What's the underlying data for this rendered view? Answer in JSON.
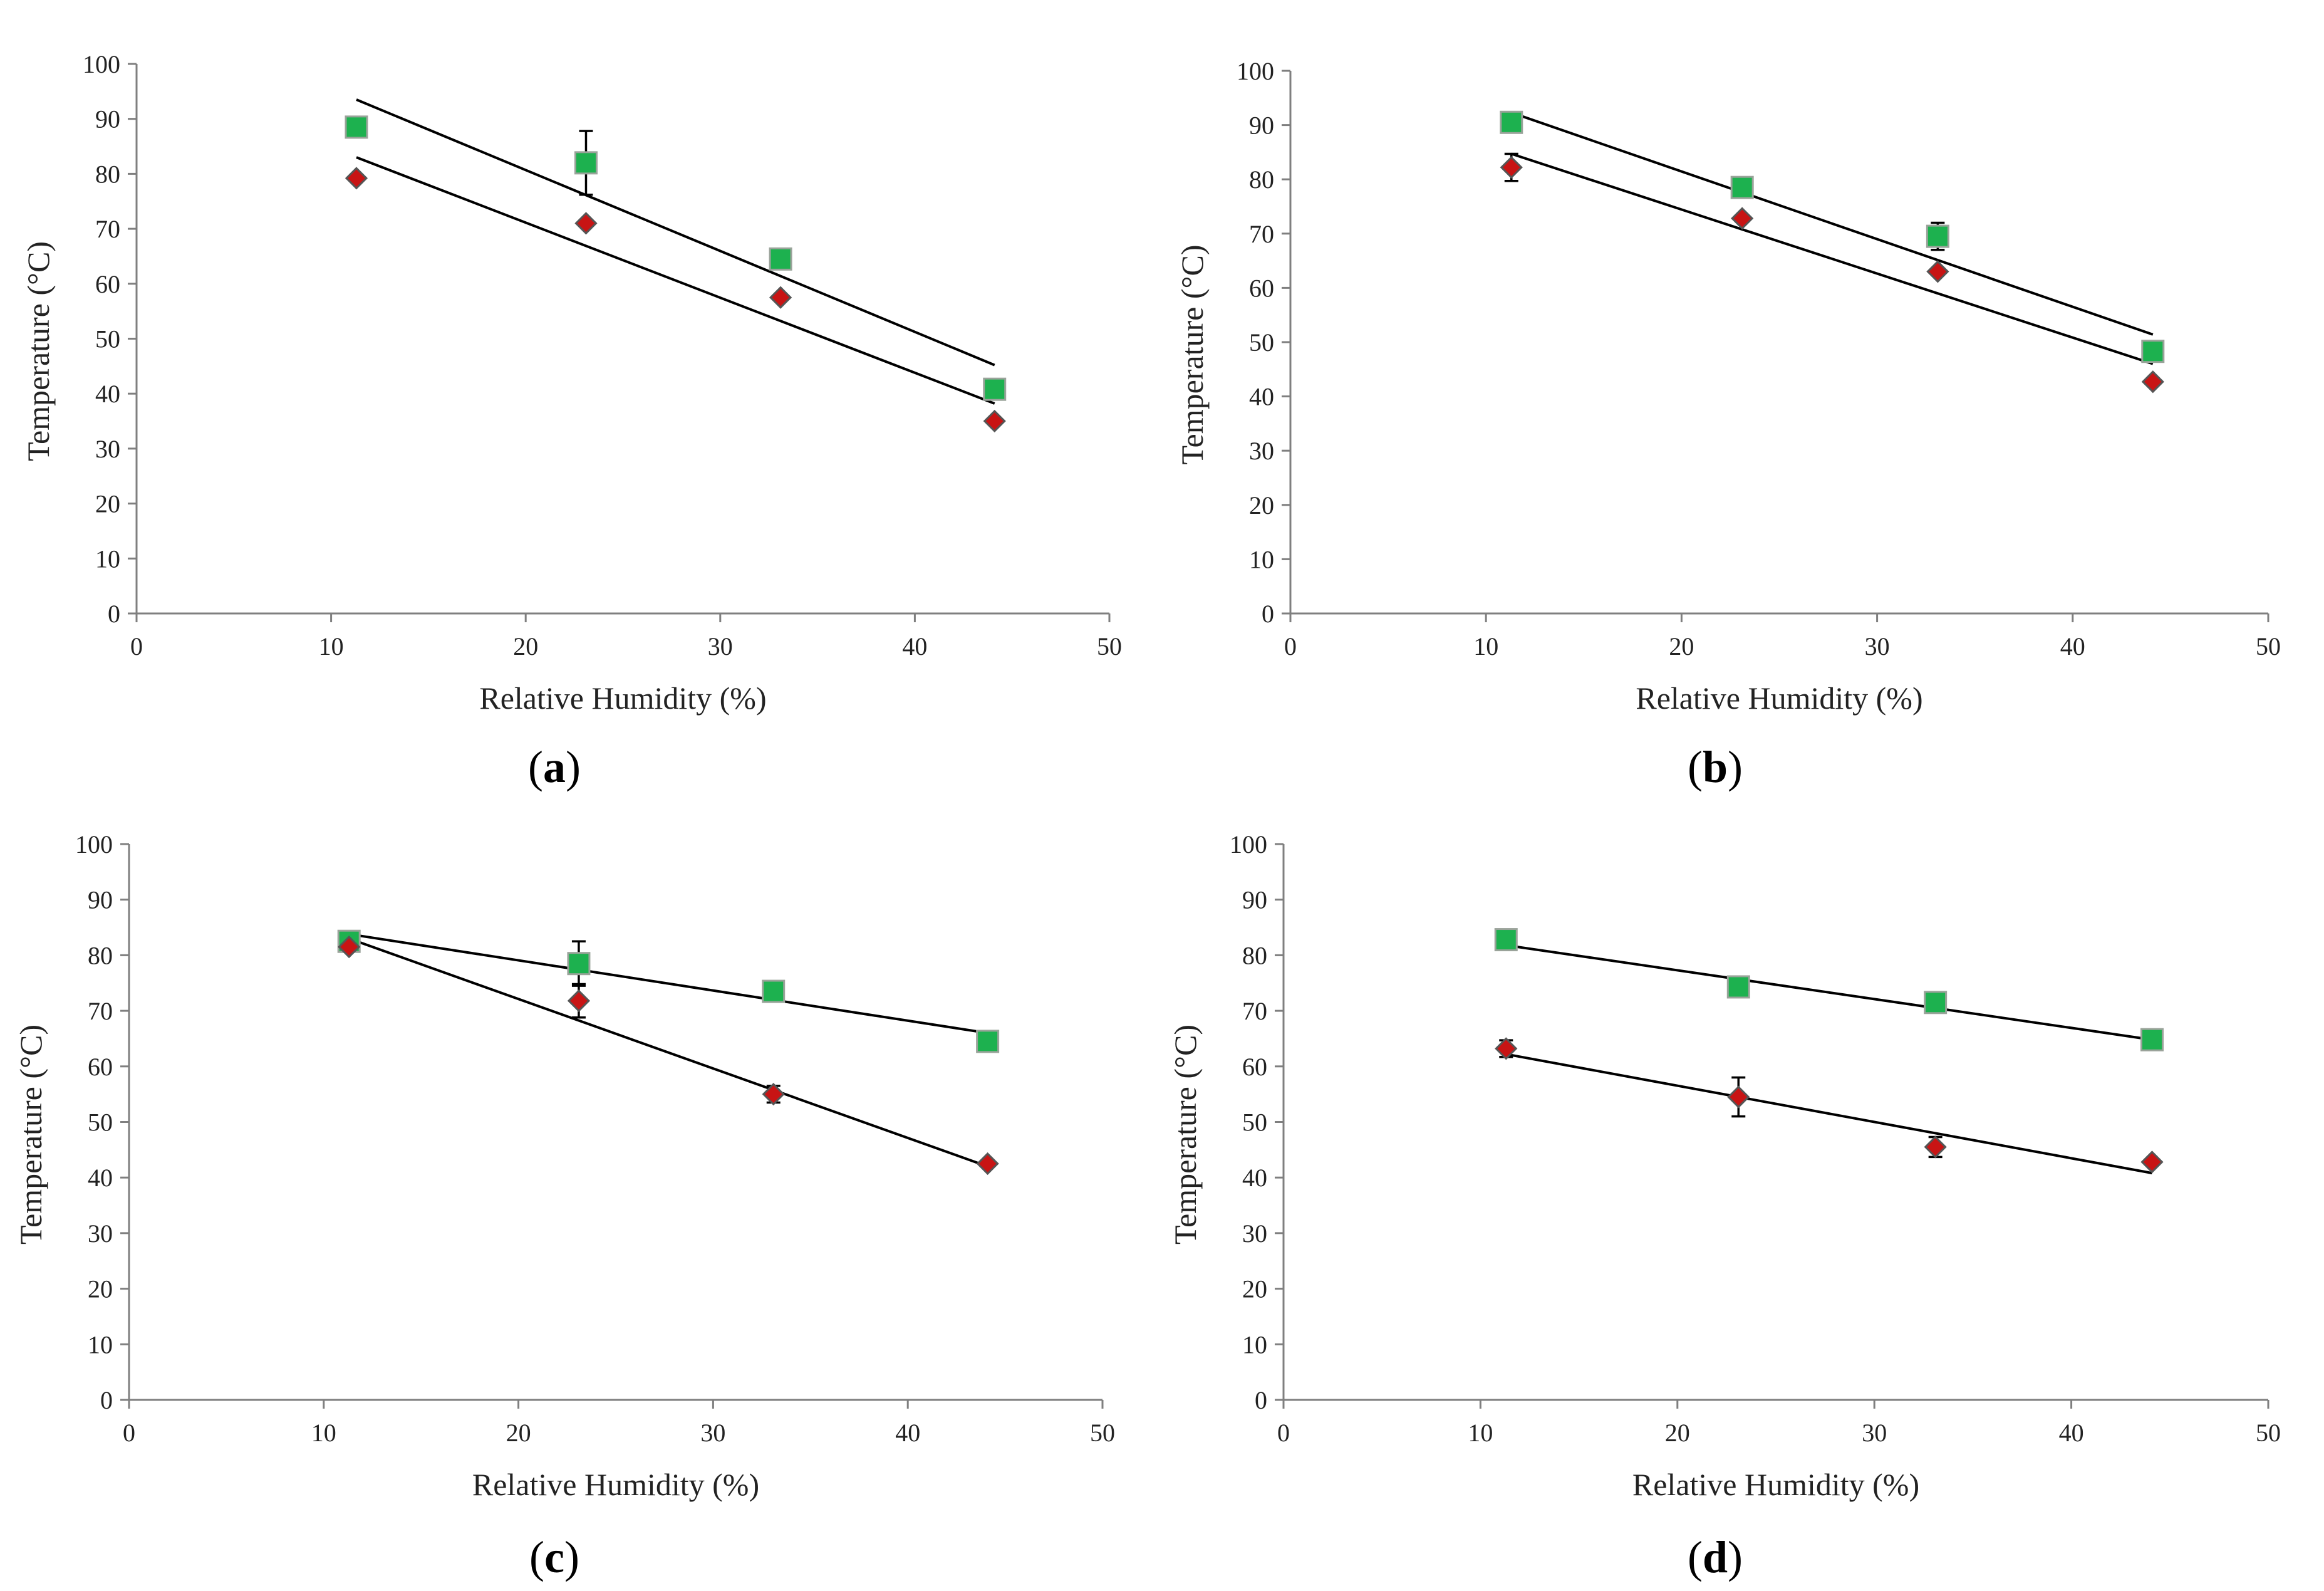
{
  "colors": {
    "square_marker": "#1db14f",
    "square_edge": "#9aa39a",
    "diamond_marker": "#c81414",
    "diamond_edge": "#555555",
    "axis": "#7f7f7f",
    "fit_line": "#000000"
  },
  "chart_data": [
    {
      "type": "scatter",
      "panel_label": "a",
      "xlabel": "Relative Humidity (%)",
      "ylabel": "Temperature (°C)",
      "xlim": [
        0,
        50
      ],
      "ylim": [
        0,
        100
      ],
      "xticks": [
        0,
        10,
        20,
        30,
        40,
        50
      ],
      "yticks": [
        0,
        10,
        20,
        30,
        40,
        50,
        60,
        70,
        80,
        90,
        100
      ],
      "grid": false,
      "series": [
        {
          "name": "square",
          "marker": "square",
          "x": [
            11.3,
            23.1,
            33.1,
            44.1
          ],
          "y": [
            88.5,
            82,
            64.5,
            40.8
          ],
          "err": [
            0,
            5.8,
            0,
            0
          ],
          "fit": [
            [
              11.3,
              93.5
            ],
            [
              44.1,
              45.2
            ]
          ]
        },
        {
          "name": "diamond",
          "marker": "diamond",
          "x": [
            11.3,
            23.1,
            33.1,
            44.1
          ],
          "y": [
            79.2,
            71,
            57.5,
            35
          ],
          "err": [
            0,
            0,
            0,
            0
          ],
          "fit": [
            [
              11.3,
              83
            ],
            [
              44.1,
              38.2
            ]
          ]
        }
      ]
    },
    {
      "type": "scatter",
      "panel_label": "b",
      "xlabel": "Relative Humidity (%)",
      "ylabel": "Temperature (°C)",
      "xlim": [
        0,
        50
      ],
      "ylim": [
        0,
        100
      ],
      "xticks": [
        0,
        10,
        20,
        30,
        40,
        50
      ],
      "yticks": [
        0,
        10,
        20,
        30,
        40,
        50,
        60,
        70,
        80,
        90,
        100
      ],
      "grid": false,
      "series": [
        {
          "name": "square",
          "marker": "square",
          "x": [
            11.3,
            23.1,
            33.1,
            44.1
          ],
          "y": [
            90.5,
            78.5,
            69.5,
            48.3
          ],
          "err": [
            0,
            0,
            2.5,
            0
          ],
          "fit": [
            [
              11.3,
              92.3
            ],
            [
              44.1,
              51.4
            ]
          ]
        },
        {
          "name": "diamond",
          "marker": "diamond",
          "x": [
            11.3,
            23.1,
            33.1,
            44.1
          ],
          "y": [
            82.2,
            72.8,
            63,
            42.7
          ],
          "err": [
            2.5,
            0,
            0,
            0
          ],
          "fit": [
            [
              11.3,
              84.7
            ],
            [
              44.1,
              46
            ]
          ]
        }
      ]
    },
    {
      "type": "scatter",
      "panel_label": "c",
      "xlabel": "Relative Humidity (%)",
      "ylabel": "Temperature (°C)",
      "xlim": [
        0,
        50
      ],
      "ylim": [
        0,
        100
      ],
      "xticks": [
        0,
        10,
        20,
        30,
        40,
        50
      ],
      "yticks": [
        0,
        10,
        20,
        30,
        40,
        50,
        60,
        70,
        80,
        90,
        100
      ],
      "grid": false,
      "series": [
        {
          "name": "square",
          "marker": "square",
          "x": [
            11.3,
            23.1,
            33.1,
            44.1
          ],
          "y": [
            82.5,
            78.5,
            73.5,
            64.5
          ],
          "err": [
            0,
            4,
            0,
            0
          ],
          "fit": [
            [
              11.3,
              83.8
            ],
            [
              44.1,
              66
            ]
          ]
        },
        {
          "name": "diamond",
          "marker": "diamond",
          "x": [
            11.3,
            23.1,
            33.1,
            44.1
          ],
          "y": [
            81.5,
            71.8,
            55,
            42.5
          ],
          "err": [
            0,
            3,
            1.5,
            0
          ],
          "fit": [
            [
              11.3,
              83
            ],
            [
              44.1,
              42
            ]
          ]
        }
      ]
    },
    {
      "type": "scatter",
      "panel_label": "d",
      "xlabel": "Relative Humidity (%)",
      "ylabel": "Temperature (°C)",
      "xlim": [
        0,
        50
      ],
      "ylim": [
        0,
        100
      ],
      "xticks": [
        0,
        10,
        20,
        30,
        40,
        50
      ],
      "yticks": [
        0,
        10,
        20,
        30,
        40,
        50,
        60,
        70,
        80,
        90,
        100
      ],
      "grid": false,
      "series": [
        {
          "name": "square",
          "marker": "square",
          "x": [
            11.3,
            23.1,
            33.1,
            44.1
          ],
          "y": [
            82.8,
            74.3,
            71.5,
            64.8
          ],
          "err": [
            0,
            0,
            0,
            0
          ],
          "fit": [
            [
              11.3,
              81.8
            ],
            [
              44.1,
              64.8
            ]
          ]
        },
        {
          "name": "diamond",
          "marker": "diamond",
          "x": [
            11.3,
            23.1,
            33.1,
            44.1
          ],
          "y": [
            63.2,
            54.5,
            45.5,
            42.8
          ],
          "err": [
            1.5,
            3.5,
            1.8,
            0
          ],
          "fit": [
            [
              11.3,
              62.2
            ],
            [
              44.1,
              40.8
            ]
          ]
        }
      ]
    }
  ]
}
